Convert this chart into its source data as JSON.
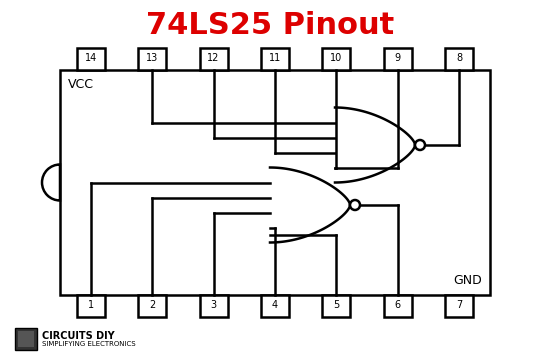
{
  "title": "74LS25 Pinout",
  "title_color": "#dd0000",
  "title_fontsize": 22,
  "title_fontweight": "bold",
  "bg_color": "#ffffff",
  "line_color": "#000000",
  "lw": 1.8,
  "vcc_label": "VCC",
  "gnd_label": "GND",
  "footer_text": "CIRCUITS DIY",
  "footer_sub": "SIMPLIFYING ELECTRONICS",
  "top_pins": [
    14,
    13,
    12,
    11,
    10,
    9,
    8
  ],
  "bottom_pins": [
    1,
    2,
    3,
    4,
    5,
    6,
    7
  ]
}
